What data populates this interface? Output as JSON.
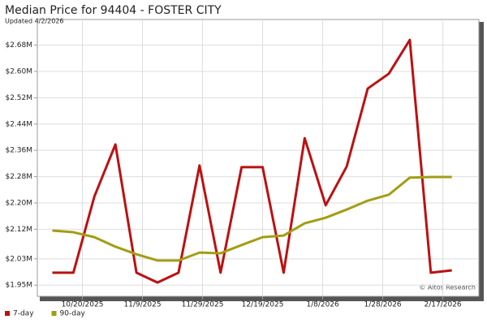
{
  "chart_data": {
    "type": "line",
    "title": "Median Price for 94404 - FOSTER CITY",
    "subtitle": "Updated 4/2/2026",
    "watermark": "© Altos Research",
    "x": [
      "2025-10-10",
      "2025-10-17",
      "2025-10-24",
      "2025-10-31",
      "2025-11-07",
      "2025-11-14",
      "2025-11-21",
      "2025-11-28",
      "2025-12-05",
      "2025-12-12",
      "2025-12-19",
      "2025-12-26",
      "2026-01-02",
      "2026-01-09",
      "2026-01-16",
      "2026-01-23",
      "2026-01-30",
      "2026-02-06",
      "2026-02-13",
      "2026-02-20"
    ],
    "series": [
      {
        "name": "7-day",
        "color": "#bb1111",
        "values": [
          1988000,
          1988000,
          2220000,
          2378000,
          1988000,
          1958000,
          1988000,
          2314000,
          1988000,
          2309000,
          2309000,
          1988000,
          2397000,
          2193000,
          2311000,
          2548000,
          2593000,
          2696000,
          1988000,
          1995000
        ]
      },
      {
        "name": "90-day",
        "color": "#a39d14",
        "values": [
          2116000,
          2111000,
          2096000,
          2067000,
          2044000,
          2025000,
          2025000,
          2049000,
          2047000,
          2072000,
          2096000,
          2101000,
          2138000,
          2155000,
          2180000,
          2207000,
          2225000,
          2277000,
          2279000,
          2279000
        ]
      }
    ],
    "xlim": [
      "2025-10-05",
      "2026-03-01"
    ],
    "xticks": [
      {
        "value": "2025-10-20",
        "label": "10/20/2025"
      },
      {
        "value": "2025-11-09",
        "label": "11/9/2025"
      },
      {
        "value": "2025-11-29",
        "label": "11/29/2025"
      },
      {
        "value": "2025-12-19",
        "label": "12/19/2025"
      },
      {
        "value": "2026-01-08",
        "label": "1/8/2026"
      },
      {
        "value": "2026-01-28",
        "label": "1/28/2026"
      },
      {
        "value": "2026-02-17",
        "label": "2/17/2026"
      }
    ],
    "ylim": [
      1916000,
      2758000
    ],
    "yticks": [
      {
        "value": 1950000,
        "label": "$1.95M"
      },
      {
        "value": 2030000,
        "label": "$2.03M"
      },
      {
        "value": 2120000,
        "label": "$2.12M"
      },
      {
        "value": 2200000,
        "label": "$2.20M"
      },
      {
        "value": 2280000,
        "label": "$2.28M"
      },
      {
        "value": 2360000,
        "label": "$2.36M"
      },
      {
        "value": 2440000,
        "label": "$2.44M"
      },
      {
        "value": 2520000,
        "label": "$2.52M"
      },
      {
        "value": 2600000,
        "label": "$2.60M"
      },
      {
        "value": 2680000,
        "label": "$2.68M"
      }
    ],
    "grid": true,
    "legend": "bottom-left"
  }
}
